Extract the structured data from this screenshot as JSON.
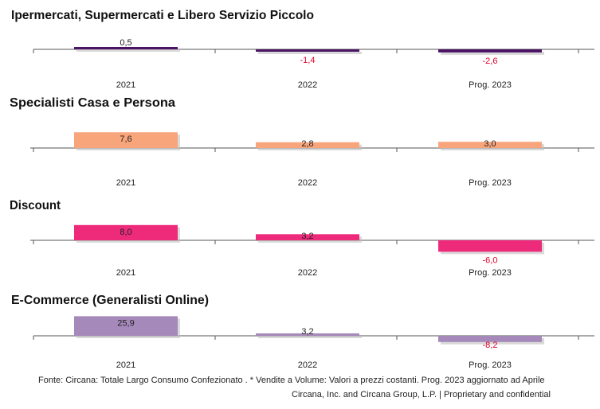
{
  "chart_data": [
    {
      "type": "bar",
      "title": "Ipermercati, Supermercati e Libero Servizio Piccolo",
      "categories": [
        "2021",
        "2022",
        "Prog. 2023"
      ],
      "values": [
        0.5,
        -1.4,
        -2.6
      ],
      "value_labels": [
        "0,5",
        "-1,4",
        "-2,6"
      ],
      "color": "#4a1364"
    },
    {
      "type": "bar",
      "title": "Specialisti Casa e Persona",
      "categories": [
        "2021",
        "2022",
        "Prog. 2023"
      ],
      "values": [
        7.6,
        2.8,
        3.0
      ],
      "value_labels": [
        "7,6",
        "2,8",
        "3,0"
      ],
      "color": "#f9a57c"
    },
    {
      "type": "bar",
      "title": "Discount",
      "categories": [
        "2021",
        "2022",
        "Prog. 2023"
      ],
      "values": [
        8.0,
        3.2,
        -6.0
      ],
      "value_labels": [
        "8,0",
        "3,2",
        "-6,0"
      ],
      "color": "#ee2a7b"
    },
    {
      "type": "bar",
      "title": "E-Commerce (Generalisti Online)",
      "categories": [
        "2021",
        "2022",
        "Prog. 2023"
      ],
      "values": [
        25.9,
        3.2,
        -8.2
      ],
      "value_labels": [
        "25,9",
        "3,2",
        "-8,2"
      ],
      "color": "#a689bb"
    }
  ],
  "colors": {
    "negative_label": "#e0002a",
    "positive_label": "#222222",
    "axis": "#555555"
  },
  "footer": {
    "source": "Fonte: Circana: Totale Largo Consumo Confezionato . * Vendite a Volume: Valori a prezzi costanti.  Prog. 2023 aggiornato ad Aprile",
    "copyright": "Circana, Inc. and Circana Group, L.P.  |  Proprietary and confidential"
  }
}
